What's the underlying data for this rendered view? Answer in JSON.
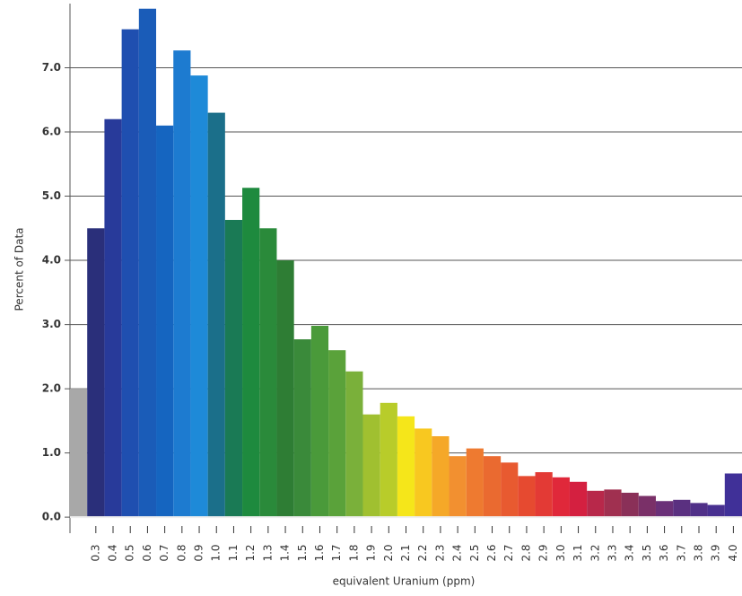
{
  "chart_data": {
    "type": "bar",
    "x_label": "equivalent Uranium (ppm)",
    "y_label": "Percent of Data",
    "categories": [
      null,
      "0.3",
      "0.4",
      "0.5",
      "0.6",
      "0.7",
      "0.8",
      "0.9",
      "1.0",
      "1.1",
      "1.2",
      "1.3",
      "1.4",
      "1.5",
      "1.6",
      "1.7",
      "1.8",
      "1.9",
      "2.0",
      "2.1",
      "2.2",
      "2.3",
      "2.4",
      "2.5",
      "2.6",
      "2.7",
      "2.8",
      "2.9",
      "3.0",
      "3.1",
      "3.2",
      "3.3",
      "3.4",
      "3.5",
      "3.6",
      "3.7",
      "3.8",
      "3.9",
      "4.0"
    ],
    "values": [
      2.0,
      4.5,
      6.2,
      7.6,
      7.92,
      6.1,
      7.27,
      6.88,
      6.3,
      4.63,
      5.13,
      4.5,
      4.0,
      2.77,
      2.98,
      2.6,
      2.27,
      1.6,
      1.78,
      1.57,
      1.38,
      1.26,
      0.95,
      1.07,
      0.95,
      0.85,
      0.64,
      0.7,
      0.62,
      0.55,
      0.41,
      0.43,
      0.38,
      0.33,
      0.25,
      0.27,
      0.22,
      0.19,
      0.68
    ],
    "colors": [
      "#a8a8a8",
      "#2a2f7a",
      "#283a9a",
      "#1f4fb0",
      "#1a5cb8",
      "#1565c0",
      "#1d7bd0",
      "#1e8ad8",
      "#1b6f8a",
      "#1a7a55",
      "#1e8a3e",
      "#2a8a3a",
      "#2e7d34",
      "#3a8a3a",
      "#4a9a3a",
      "#5aa23a",
      "#7ab03a",
      "#a0c030",
      "#b8cc2a",
      "#f5e61a",
      "#f8c820",
      "#f5a828",
      "#f29030",
      "#ee7a30",
      "#ea6a30",
      "#e85a30",
      "#e64a30",
      "#e33a35",
      "#e0283a",
      "#d42040",
      "#b8284a",
      "#a03050",
      "#8a3058",
      "#7a3068",
      "#6a3078",
      "#5a3080",
      "#503088",
      "#483090",
      "#403098"
    ],
    "ylim": [
      -0.25,
      8.0
    ],
    "yticks": [
      {
        "value": 0,
        "label": "0.0"
      },
      {
        "value": 1,
        "label": "1.0"
      },
      {
        "value": 2,
        "label": "2.0"
      },
      {
        "value": 3,
        "label": "3.0"
      },
      {
        "value": 4,
        "label": "4.0"
      },
      {
        "value": 5,
        "label": "5.0"
      },
      {
        "value": 6,
        "label": "6.0"
      },
      {
        "value": 7,
        "label": "7.0"
      }
    ],
    "grid": true
  }
}
